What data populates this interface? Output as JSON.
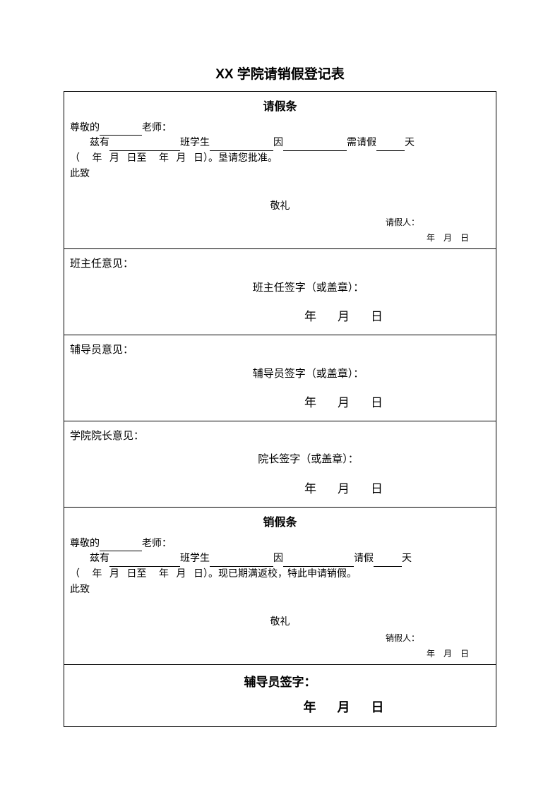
{
  "title": "XX 学院请销假登记表",
  "leave": {
    "heading": "请假条",
    "dear_prefix": "尊敬的",
    "dear_suffix": "老师：",
    "line2_a": "兹有",
    "line2_b": "班学生",
    "line2_c": "因",
    "line2_d": "需请假",
    "line2_e": "天",
    "line3_a": "（",
    "line3_b": "年",
    "line3_c": "月",
    "line3_d": "日至",
    "line3_e": "年",
    "line3_f": "月",
    "line3_g": "日）。垦请您批准。",
    "cizhi": "此致",
    "salute": "敬礼",
    "signer_label": "请假人：",
    "date_y": "年",
    "date_m": "月",
    "date_d": "日"
  },
  "opinions": [
    {
      "label": "班主任意见：",
      "sign": "班主任签字（或盖章）："
    },
    {
      "label": "辅导员意见：",
      "sign": "辅导员签字（或盖章）："
    },
    {
      "label": "学院院长意见：",
      "sign": "院长签字（或盖章）："
    }
  ],
  "cancel": {
    "heading": "销假条",
    "dear_prefix": "尊敬的",
    "dear_suffix": "老师：",
    "line2_a": "兹有",
    "line2_b": "班学生",
    "line2_c": "因",
    "line2_d": "请假",
    "line2_e": "天",
    "line3_a": "（",
    "line3_b": "年",
    "line3_c": "月",
    "line3_d": "日至",
    "line3_e": "年",
    "line3_f": "月",
    "line3_g": "日）。现已期满返校，特此申请销假。",
    "cizhi": "此致",
    "salute": "敬礼",
    "signer_label": "销假人：",
    "date_y": "年",
    "date_m": "月",
    "date_d": "日"
  },
  "final": {
    "sign": "辅导员签字：",
    "y": "年",
    "m": "月",
    "d": "日"
  },
  "date_tokens": {
    "y": "年",
    "m": "月",
    "d": "日"
  }
}
